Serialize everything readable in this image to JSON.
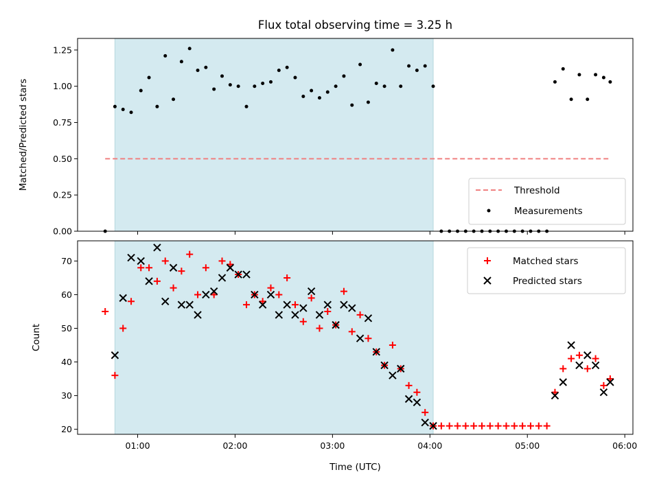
{
  "chart_data": [
    {
      "type": "scatter",
      "title": "Flux total observing time = 3.25 h",
      "xlabel": "",
      "ylabel": "Matched/Predicted stars",
      "ylim": [
        0,
        1.33
      ],
      "xlim": [
        "00:23",
        "06:05"
      ],
      "yticks": [
        "0.00",
        "0.25",
        "0.50",
        "0.75",
        "1.00",
        "1.25"
      ],
      "shaded_interval": {
        "start": "00:46",
        "end": "04:02",
        "color": "#d4eaf0"
      },
      "legend_position": "lower-right",
      "threshold": {
        "name": "Threshold",
        "y": 0.5,
        "x_start": "00:40",
        "x_end": "05:51",
        "color": "#f08080",
        "style": "dashed"
      },
      "series": [
        {
          "name": "Measurements",
          "marker": "dot",
          "color": "#000000",
          "points": [
            [
              "00:40",
              0
            ],
            [
              "00:46",
              0.86
            ],
            [
              "00:51",
              0.84
            ],
            [
              "00:56",
              0.82
            ],
            [
              "01:02",
              0.97
            ],
            [
              "01:07",
              1.06
            ],
            [
              "01:12",
              0.86
            ],
            [
              "01:17",
              1.21
            ],
            [
              "01:22",
              0.91
            ],
            [
              "01:27",
              1.17
            ],
            [
              "01:32",
              1.26
            ],
            [
              "01:37",
              1.11
            ],
            [
              "01:42",
              1.13
            ],
            [
              "01:47",
              0.98
            ],
            [
              "01:52",
              1.07
            ],
            [
              "01:57",
              1.01
            ],
            [
              "02:02",
              1.0
            ],
            [
              "02:07",
              0.86
            ],
            [
              "02:12",
              1.0
            ],
            [
              "02:17",
              1.02
            ],
            [
              "02:22",
              1.03
            ],
            [
              "02:27",
              1.11
            ],
            [
              "02:32",
              1.13
            ],
            [
              "02:37",
              1.06
            ],
            [
              "02:42",
              0.93
            ],
            [
              "02:47",
              0.97
            ],
            [
              "02:52",
              0.92
            ],
            [
              "02:57",
              0.96
            ],
            [
              "03:02",
              1.0
            ],
            [
              "03:07",
              1.07
            ],
            [
              "03:12",
              0.87
            ],
            [
              "03:17",
              1.15
            ],
            [
              "03:22",
              0.89
            ],
            [
              "03:27",
              1.02
            ],
            [
              "03:32",
              1.0
            ],
            [
              "03:37",
              1.25
            ],
            [
              "03:42",
              1.0
            ],
            [
              "03:47",
              1.14
            ],
            [
              "03:52",
              1.11
            ],
            [
              "03:57",
              1.14
            ],
            [
              "04:02",
              1.0
            ],
            [
              "04:07",
              0
            ],
            [
              "04:12",
              0
            ],
            [
              "04:17",
              0
            ],
            [
              "04:22",
              0
            ],
            [
              "04:27",
              0
            ],
            [
              "04:32",
              0
            ],
            [
              "04:37",
              0
            ],
            [
              "04:42",
              0
            ],
            [
              "04:47",
              0
            ],
            [
              "04:52",
              0
            ],
            [
              "04:57",
              0
            ],
            [
              "05:02",
              0
            ],
            [
              "05:07",
              0
            ],
            [
              "05:12",
              0
            ],
            [
              "05:17",
              1.03
            ],
            [
              "05:22",
              1.12
            ],
            [
              "05:27",
              0.91
            ],
            [
              "05:32",
              1.08
            ],
            [
              "05:37",
              0.91
            ],
            [
              "05:42",
              1.08
            ],
            [
              "05:47",
              1.06
            ],
            [
              "05:51",
              1.03
            ]
          ]
        }
      ]
    },
    {
      "type": "scatter",
      "title": "",
      "xlabel": "Time (UTC)",
      "ylabel": "Count",
      "ylim": [
        18.5,
        76
      ],
      "xlim": [
        "00:23",
        "06:05"
      ],
      "xticks": [
        "01:00",
        "02:00",
        "03:00",
        "04:00",
        "05:00",
        "06:00"
      ],
      "yticks": [
        "20",
        "30",
        "40",
        "50",
        "60",
        "70"
      ],
      "shaded_interval": {
        "start": "00:46",
        "end": "04:02",
        "color": "#d4eaf0"
      },
      "legend_position": "upper-right",
      "series": [
        {
          "name": "Matched stars",
          "marker": "plus",
          "color": "#ff0000",
          "points": [
            [
              "00:40",
              55
            ],
            [
              "00:46",
              36
            ],
            [
              "00:51",
              50
            ],
            [
              "00:56",
              58
            ],
            [
              "01:02",
              68
            ],
            [
              "01:07",
              68
            ],
            [
              "01:12",
              64
            ],
            [
              "01:17",
              70
            ],
            [
              "01:22",
              62
            ],
            [
              "01:27",
              67
            ],
            [
              "01:32",
              72
            ],
            [
              "01:37",
              60
            ],
            [
              "01:42",
              68
            ],
            [
              "01:47",
              60
            ],
            [
              "01:52",
              70
            ],
            [
              "01:57",
              69
            ],
            [
              "02:02",
              66
            ],
            [
              "02:07",
              57
            ],
            [
              "02:12",
              60
            ],
            [
              "02:17",
              58
            ],
            [
              "02:22",
              62
            ],
            [
              "02:27",
              60
            ],
            [
              "02:32",
              65
            ],
            [
              "02:37",
              57
            ],
            [
              "02:42",
              52
            ],
            [
              "02:47",
              59
            ],
            [
              "02:52",
              50
            ],
            [
              "02:57",
              55
            ],
            [
              "03:02",
              51
            ],
            [
              "03:07",
              61
            ],
            [
              "03:12",
              49
            ],
            [
              "03:17",
              54
            ],
            [
              "03:22",
              47
            ],
            [
              "03:27",
              43
            ],
            [
              "03:32",
              39
            ],
            [
              "03:37",
              45
            ],
            [
              "03:42",
              38
            ],
            [
              "03:47",
              33
            ],
            [
              "03:52",
              31
            ],
            [
              "03:57",
              25
            ],
            [
              "04:02",
              21
            ],
            [
              "04:07",
              21
            ],
            [
              "04:12",
              21
            ],
            [
              "04:17",
              21
            ],
            [
              "04:22",
              21
            ],
            [
              "04:27",
              21
            ],
            [
              "04:32",
              21
            ],
            [
              "04:37",
              21
            ],
            [
              "04:42",
              21
            ],
            [
              "04:47",
              21
            ],
            [
              "04:52",
              21
            ],
            [
              "04:57",
              21
            ],
            [
              "05:02",
              21
            ],
            [
              "05:07",
              21
            ],
            [
              "05:12",
              21
            ],
            [
              "05:17",
              31
            ],
            [
              "05:22",
              38
            ],
            [
              "05:27",
              41
            ],
            [
              "05:32",
              42
            ],
            [
              "05:37",
              38
            ],
            [
              "05:42",
              41
            ],
            [
              "05:47",
              33
            ],
            [
              "05:51",
              35
            ]
          ]
        },
        {
          "name": "Predicted stars",
          "marker": "x",
          "color": "#000000",
          "points": [
            [
              "00:46",
              42
            ],
            [
              "00:51",
              59
            ],
            [
              "00:56",
              71
            ],
            [
              "01:02",
              70
            ],
            [
              "01:07",
              64
            ],
            [
              "01:12",
              74
            ],
            [
              "01:17",
              58
            ],
            [
              "01:22",
              68
            ],
            [
              "01:27",
              57
            ],
            [
              "01:32",
              57
            ],
            [
              "01:37",
              54
            ],
            [
              "01:42",
              60
            ],
            [
              "01:47",
              61
            ],
            [
              "01:52",
              65
            ],
            [
              "01:57",
              68
            ],
            [
              "02:02",
              66
            ],
            [
              "02:07",
              66
            ],
            [
              "02:12",
              60
            ],
            [
              "02:17",
              57
            ],
            [
              "02:22",
              60
            ],
            [
              "02:27",
              54
            ],
            [
              "02:32",
              57
            ],
            [
              "02:37",
              54
            ],
            [
              "02:42",
              56
            ],
            [
              "02:47",
              61
            ],
            [
              "02:52",
              54
            ],
            [
              "02:57",
              57
            ],
            [
              "03:02",
              51
            ],
            [
              "03:07",
              57
            ],
            [
              "03:12",
              56
            ],
            [
              "03:17",
              47
            ],
            [
              "03:22",
              53
            ],
            [
              "03:27",
              43
            ],
            [
              "03:32",
              39
            ],
            [
              "03:37",
              36
            ],
            [
              "03:42",
              38
            ],
            [
              "03:47",
              29
            ],
            [
              "03:52",
              28
            ],
            [
              "03:57",
              22
            ],
            [
              "04:02",
              21
            ],
            [
              "05:17",
              30
            ],
            [
              "05:22",
              34
            ],
            [
              "05:27",
              45
            ],
            [
              "05:32",
              39
            ],
            [
              "05:37",
              42
            ],
            [
              "05:42",
              39
            ],
            [
              "05:47",
              31
            ],
            [
              "05:51",
              34
            ]
          ]
        }
      ]
    }
  ]
}
